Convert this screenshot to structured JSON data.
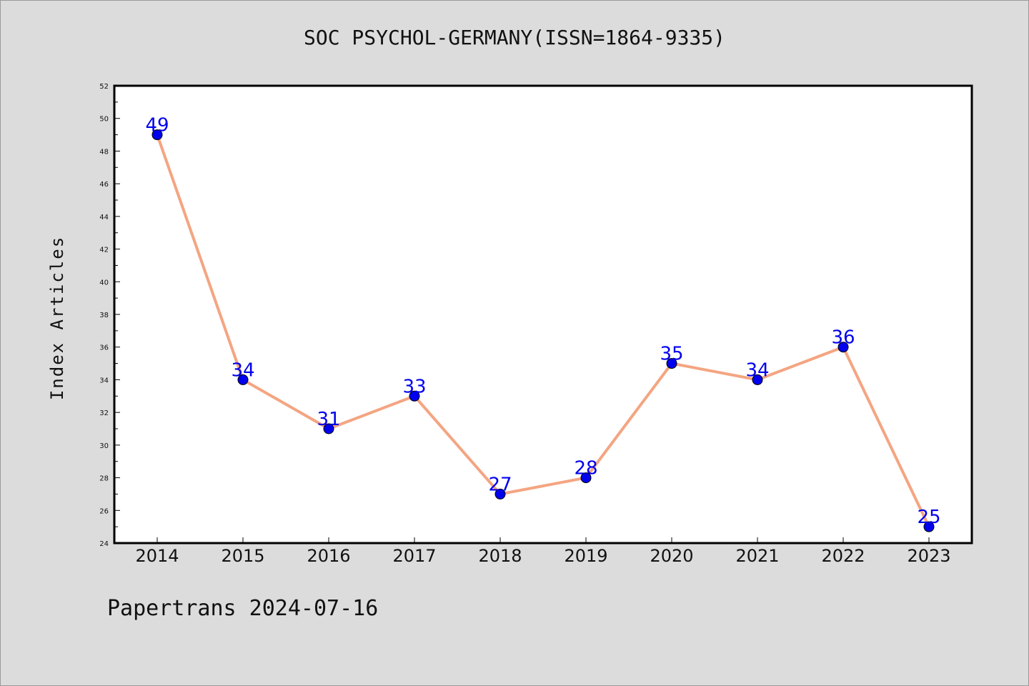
{
  "chart_data": {
    "type": "line",
    "title": "SOC PSYCHOL-GERMANY(ISSN=1864-9335)",
    "xlabel": "",
    "ylabel": "Index Articles",
    "categories": [
      "2014",
      "2015",
      "2016",
      "2017",
      "2018",
      "2019",
      "2020",
      "2021",
      "2022",
      "2023"
    ],
    "values": [
      49,
      34,
      31,
      33,
      27,
      28,
      35,
      34,
      36,
      25
    ],
    "ylim": [
      24,
      52
    ],
    "yticks": [
      24,
      26,
      28,
      30,
      32,
      34,
      36,
      38,
      40,
      42,
      44,
      46,
      48,
      50,
      52
    ],
    "grid": false,
    "line_color": "#f4a582",
    "marker_color": "#0000ee",
    "label_color": "#0000ee"
  },
  "footer": "Papertrans 2024-07-16"
}
